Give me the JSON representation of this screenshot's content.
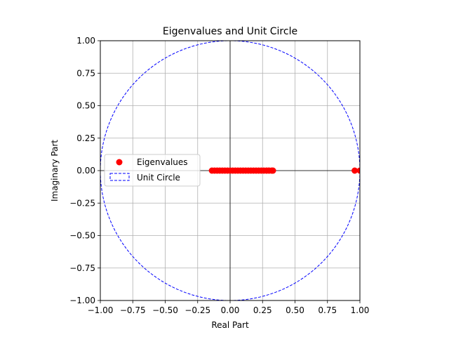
{
  "chart_data": {
    "type": "scatter",
    "title": "Eigenvalues and Unit Circle",
    "xlabel": "Real Part",
    "ylabel": "Imaginary Part",
    "xlim": [
      -1.0,
      1.0
    ],
    "ylim": [
      -1.0,
      1.0
    ],
    "grid": true,
    "legend_location": "center-left",
    "x_ticks": [
      "−1.00",
      "−0.75",
      "−0.50",
      "−0.25",
      "0.00",
      "0.25",
      "0.50",
      "0.75",
      "1.00"
    ],
    "y_ticks": [
      "1.00",
      "0.75",
      "0.50",
      "0.25",
      "0.00",
      "−0.25",
      "−0.50",
      "−0.75",
      "−1.00"
    ],
    "x_tick_values": [
      -1.0,
      -0.75,
      -0.5,
      -0.25,
      0.0,
      0.25,
      0.5,
      0.75,
      1.0
    ],
    "y_tick_values": [
      1.0,
      0.75,
      0.5,
      0.25,
      0.0,
      -0.25,
      -0.5,
      -0.75,
      -1.0
    ],
    "series": [
      {
        "name": "Eigenvalues",
        "kind": "scatter",
        "color": "#ff0000",
        "points": [
          {
            "x": -0.14,
            "y": 0.0
          },
          {
            "x": -0.12,
            "y": 0.0
          },
          {
            "x": -0.1,
            "y": 0.0
          },
          {
            "x": -0.08,
            "y": 0.0
          },
          {
            "x": -0.06,
            "y": 0.0
          },
          {
            "x": -0.04,
            "y": 0.0
          },
          {
            "x": -0.02,
            "y": 0.0
          },
          {
            "x": 0.0,
            "y": 0.0
          },
          {
            "x": 0.02,
            "y": 0.0
          },
          {
            "x": 0.04,
            "y": 0.0
          },
          {
            "x": 0.06,
            "y": 0.0
          },
          {
            "x": 0.08,
            "y": 0.0
          },
          {
            "x": 0.1,
            "y": 0.0
          },
          {
            "x": 0.12,
            "y": 0.0
          },
          {
            "x": 0.14,
            "y": 0.0
          },
          {
            "x": 0.16,
            "y": 0.0
          },
          {
            "x": 0.18,
            "y": 0.0
          },
          {
            "x": 0.2,
            "y": 0.0
          },
          {
            "x": 0.22,
            "y": 0.0
          },
          {
            "x": 0.24,
            "y": 0.0
          },
          {
            "x": 0.26,
            "y": 0.0
          },
          {
            "x": 0.28,
            "y": 0.0
          },
          {
            "x": 0.3,
            "y": 0.0
          },
          {
            "x": 0.32,
            "y": 0.0
          },
          {
            "x": 0.33,
            "y": 0.0
          },
          {
            "x": 0.96,
            "y": 0.0
          },
          {
            "x": 1.0,
            "y": 0.0
          }
        ]
      },
      {
        "name": "Unit Circle",
        "kind": "dashed-circle",
        "color": "#0000ff",
        "radius": 1.0,
        "center": [
          0.0,
          0.0
        ]
      }
    ]
  }
}
